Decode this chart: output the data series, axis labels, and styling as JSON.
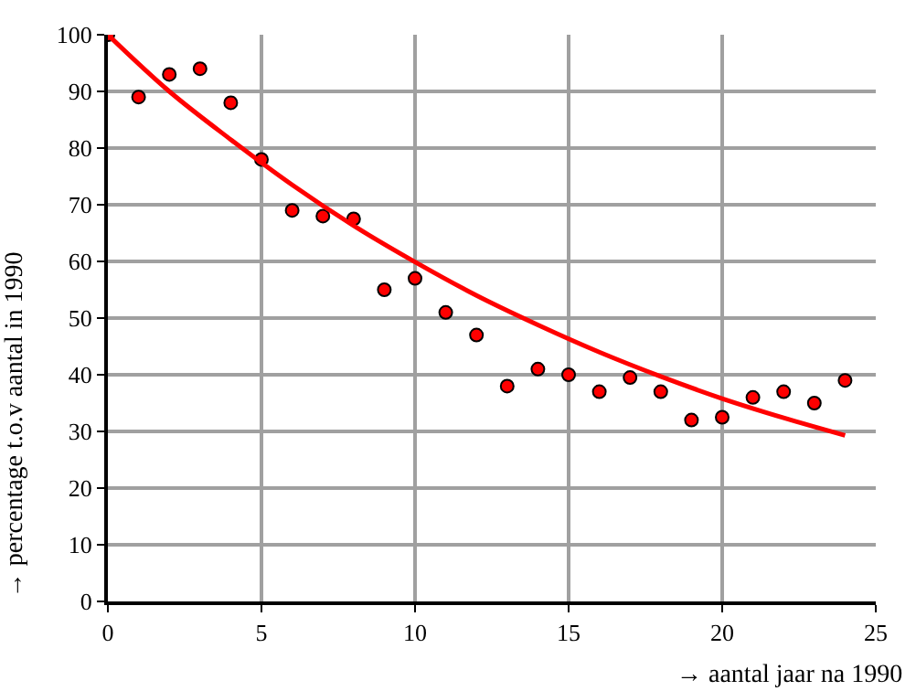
{
  "chart_data": {
    "type": "scatter",
    "xlabel": "→ aantal jaar na 1990",
    "ylabel": "→ percentage t.o.v aantal in 1990",
    "xlim": [
      0,
      25
    ],
    "ylim": [
      0,
      100
    ],
    "xticks": [
      0,
      5,
      10,
      15,
      20,
      25
    ],
    "yticks": [
      0,
      10,
      20,
      30,
      40,
      50,
      60,
      70,
      80,
      90,
      100
    ],
    "grid": true,
    "marker": "circle",
    "series": [
      {
        "color": "#ff0000",
        "x": [
          0,
          1,
          2,
          3,
          4,
          5,
          6,
          7,
          8,
          9,
          10,
          11,
          12,
          13,
          14,
          15,
          16,
          17,
          18,
          19,
          20,
          21,
          22,
          23,
          24
        ],
        "values": [
          100,
          89,
          93,
          94,
          88,
          78,
          69,
          68,
          67.5,
          55,
          57,
          51,
          47,
          38,
          41,
          40,
          37,
          39.5,
          37,
          32,
          32.5,
          36,
          37,
          35,
          39
        ]
      },
      {
        "type": "line",
        "color": "#ff0000",
        "marker": "none",
        "x": [
          0,
          2,
          4,
          6,
          8,
          10,
          12,
          14,
          16,
          18,
          20,
          22,
          24
        ],
        "values": [
          100,
          90,
          81.5,
          73.5,
          66.3,
          59.9,
          54,
          48.8,
          44,
          39.7,
          35.8,
          32.4,
          29.3
        ]
      }
    ]
  }
}
